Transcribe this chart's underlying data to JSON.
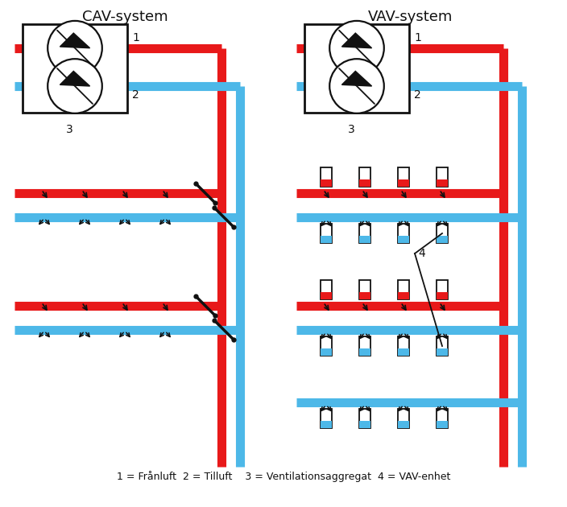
{
  "title_left": "CAV-system",
  "title_right": "VAV-system",
  "red_color": "#e8191a",
  "blue_color": "#4db8e8",
  "black_color": "#111111",
  "white_color": "#ffffff",
  "bg_color": "#ffffff",
  "legend_text": "1 = Frånluft  2 = Tilluft    3 = Ventilationsaggregat  4 = VAV-enhet",
  "duct_lw": 8,
  "title_fontsize": 13,
  "label_fontsize": 10,
  "legend_fontsize": 9
}
